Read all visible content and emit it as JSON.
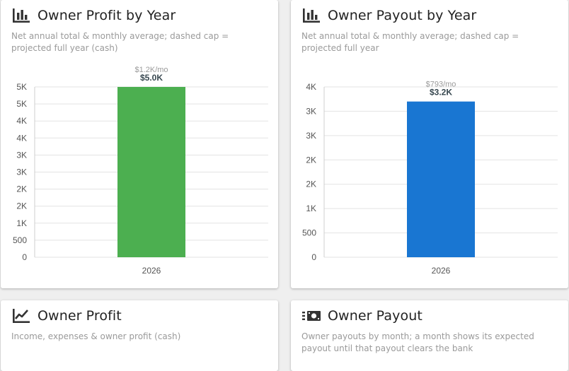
{
  "cards": [
    {
      "title": "Owner Profit by Year",
      "subtitle": "Net annual total & monthly average; dashed cap = projected full year (cash)",
      "icon": "bar-chart-icon"
    },
    {
      "title": "Owner Payout by Year",
      "subtitle": "Net annual total & monthly average; dashed cap = projected full year",
      "icon": "bar-chart-icon"
    },
    {
      "title": "Owner Profit",
      "subtitle": "Income, expenses & owner profit (cash)",
      "icon": "line-chart-icon"
    },
    {
      "title": "Owner Payout",
      "subtitle": "Owner payouts by month; a month shows its expected payout until that payout clears the bank",
      "icon": "cash-icon"
    }
  ],
  "chart_data": [
    {
      "type": "bar",
      "categories": [
        "2026"
      ],
      "values": [
        5000
      ],
      "data_labels": [
        "$5.0K"
      ],
      "monthly_labels": [
        "$1.2K/mo"
      ],
      "ytick_labels": [
        "0",
        "500",
        "1K",
        "2K",
        "2K",
        "3K",
        "3K",
        "4K",
        "4K",
        "5K",
        "5K"
      ],
      "ylim": [
        0,
        5000
      ],
      "grid": true,
      "color": "#4caf50"
    },
    {
      "type": "bar",
      "categories": [
        "2026"
      ],
      "values": [
        3200
      ],
      "data_labels": [
        "$3.2K"
      ],
      "monthly_labels": [
        "$793/mo"
      ],
      "ytick_labels": [
        "0",
        "500",
        "1K",
        "2K",
        "2K",
        "3K",
        "3K",
        "4K"
      ],
      "ylim": [
        0,
        3500
      ],
      "grid": true,
      "color": "#1976d2"
    }
  ]
}
